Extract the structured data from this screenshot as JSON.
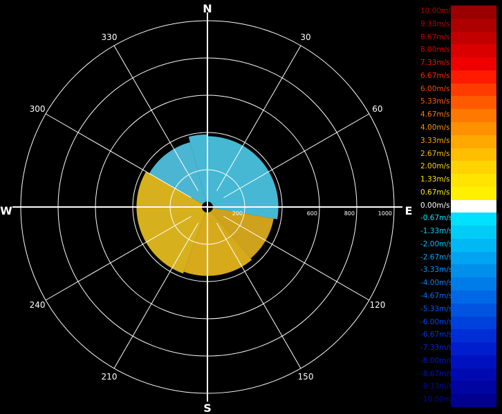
{
  "chart_data": {
    "type": "polar-radar",
    "compass": {
      "north": "N",
      "east": "E",
      "south": "S",
      "west": "W"
    },
    "bearing_labels": [
      {
        "deg": 30,
        "text": "30"
      },
      {
        "deg": 60,
        "text": "60"
      },
      {
        "deg": 120,
        "text": "120"
      },
      {
        "deg": 150,
        "text": "150"
      },
      {
        "deg": 210,
        "text": "210"
      },
      {
        "deg": 240,
        "text": "240"
      },
      {
        "deg": 300,
        "text": "300"
      },
      {
        "deg": 330,
        "text": "330"
      }
    ],
    "range_rings": [
      200,
      400,
      600,
      800,
      1000
    ],
    "range_labels": [
      {
        "value": 200,
        "text": "200"
      },
      {
        "value": 600,
        "text": "600"
      },
      {
        "value": 800,
        "text": "800"
      },
      {
        "value": 1000,
        "text": "1000"
      }
    ],
    "legend": [
      {
        "label": "10.00m/s",
        "color": "#9a0000",
        "text_color": "#b00000"
      },
      {
        "label": "9.33m/s",
        "color": "#ad0000",
        "text_color": "#c00000"
      },
      {
        "label": "8.67m/s",
        "color": "#c20000",
        "text_color": "#d00000"
      },
      {
        "label": "8.00m/s",
        "color": "#da0000",
        "text_color": "#e00000"
      },
      {
        "label": "7.33m/s",
        "color": "#f00000",
        "text_color": "#f01010"
      },
      {
        "label": "6.67m/s",
        "color": "#ff1a00",
        "text_color": "#ff2a00"
      },
      {
        "label": "6.00m/s",
        "color": "#ff3c00",
        "text_color": "#ff4400"
      },
      {
        "label": "5.33m/s",
        "color": "#ff5a00",
        "text_color": "#ff6000"
      },
      {
        "label": "4.67m/s",
        "color": "#ff7800",
        "text_color": "#ff7a00"
      },
      {
        "label": "4.00m/s",
        "color": "#ff9000",
        "text_color": "#ff9400"
      },
      {
        "label": "3.33m/s",
        "color": "#ffa800",
        "text_color": "#ffaa00"
      },
      {
        "label": "2.67m/s",
        "color": "#ffbe00",
        "text_color": "#ffc000"
      },
      {
        "label": "2.00m/s",
        "color": "#ffd200",
        "text_color": "#ffd400"
      },
      {
        "label": "1.33m/s",
        "color": "#ffe400",
        "text_color": "#ffe400"
      },
      {
        "label": "0.67m/s",
        "color": "#fff000",
        "text_color": "#fff000"
      },
      {
        "label": "0.00m/s",
        "color": "#ffffff",
        "text_color": "#ffffff"
      },
      {
        "label": "-0.67m/s",
        "color": "#00e0ff",
        "text_color": "#00e8ff"
      },
      {
        "label": "-1.33m/s",
        "color": "#00ccf8",
        "text_color": "#00d4ff"
      },
      {
        "label": "-2.00m/s",
        "color": "#00b8f4",
        "text_color": "#00c0ff"
      },
      {
        "label": "-2.67m/s",
        "color": "#00a4f0",
        "text_color": "#00acff"
      },
      {
        "label": "-3.33m/s",
        "color": "#0090ec",
        "text_color": "#0098ff"
      },
      {
        "label": "-4.00m/s",
        "color": "#007ce8",
        "text_color": "#0084ff"
      },
      {
        "label": "-4.67m/s",
        "color": "#0068e4",
        "text_color": "#0070ff"
      },
      {
        "label": "-5.33m/s",
        "color": "#0054e0",
        "text_color": "#005cff"
      },
      {
        "label": "-6.00m/s",
        "color": "#0040dc",
        "text_color": "#0048f8"
      },
      {
        "label": "-6.67m/s",
        "color": "#002ed6",
        "text_color": "#0038ee"
      },
      {
        "label": "-7.33m/s",
        "color": "#001ece",
        "text_color": "#002ae0"
      },
      {
        "label": "-8.00m/s",
        "color": "#0012c0",
        "text_color": "#001ed0"
      },
      {
        "label": "-8.67m/s",
        "color": "#000ab0",
        "text_color": "#0014c0"
      },
      {
        "label": "-9.33m/s",
        "color": "#0004a0",
        "text_color": "#000cb0"
      },
      {
        "label": "-10.00m/s",
        "color": "#000090",
        "text_color": "#0008a0"
      }
    ],
    "echo_sectors": [
      {
        "from_deg": 0,
        "to_deg": 100,
        "range_max": 380,
        "color": "#4cc8e6"
      },
      {
        "from_deg": 100,
        "to_deg": 140,
        "range_max": 360,
        "color": "#e0b020"
      },
      {
        "from_deg": 140,
        "to_deg": 200,
        "range_max": 370,
        "color": "#e8b81c"
      },
      {
        "from_deg": 200,
        "to_deg": 300,
        "range_max": 380,
        "color": "#e8c020"
      },
      {
        "from_deg": 300,
        "to_deg": 345,
        "range_max": 360,
        "color": "#52c6e4"
      },
      {
        "from_deg": 345,
        "to_deg": 360,
        "range_max": 390,
        "color": "#4cc8e6"
      }
    ],
    "grid": true
  }
}
